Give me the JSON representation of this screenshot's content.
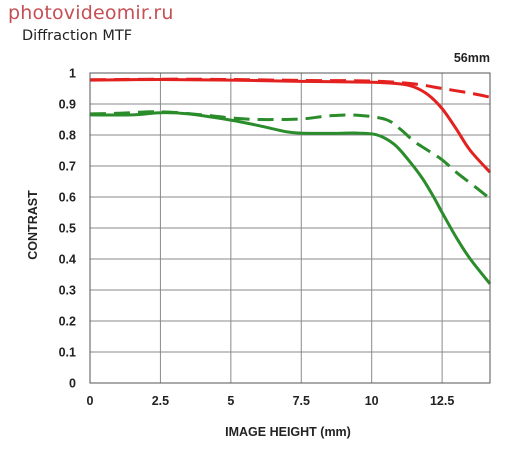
{
  "watermark": "photovideomir.ru",
  "subtitle": "Diffraction MTF",
  "focal_length": "56mm",
  "colors": {
    "red": "#e3211f",
    "green": "#2a8c2a",
    "grid": "#8a8a8a",
    "watermark": "#c64f55"
  },
  "chart_data": {
    "type": "line",
    "title": "",
    "xlabel": "IMAGE HEIGHT (mm)",
    "ylabel": "CONTRAST",
    "xlim": [
      0,
      14.2
    ],
    "ylim": [
      0,
      1
    ],
    "x_ticks": [
      "0",
      "2.5",
      "5",
      "7.5",
      "10",
      "12.5"
    ],
    "x_tick_values": [
      0,
      2.5,
      5,
      7.5,
      10,
      12.5
    ],
    "y_ticks": [
      "0",
      "0.1",
      "0.2",
      "0.3",
      "0.4",
      "0.5",
      "0.6",
      "0.7",
      "0.8",
      "0.9",
      "1"
    ],
    "y_tick_values": [
      0,
      0.1,
      0.2,
      0.3,
      0.4,
      0.5,
      0.6,
      0.7,
      0.8,
      0.9,
      1
    ],
    "grid": true,
    "legend": "none",
    "series": [
      {
        "color": "red",
        "style": "dashed",
        "points": [
          [
            0,
            0.978
          ],
          [
            2.5,
            0.98
          ],
          [
            5,
            0.979
          ],
          [
            7.5,
            0.976
          ],
          [
            10,
            0.974
          ],
          [
            11.5,
            0.965
          ],
          [
            12.5,
            0.95
          ],
          [
            13.5,
            0.935
          ],
          [
            14.2,
            0.922
          ]
        ]
      },
      {
        "color": "red",
        "style": "solid",
        "points": [
          [
            0,
            0.977
          ],
          [
            2.5,
            0.979
          ],
          [
            5,
            0.977
          ],
          [
            7.5,
            0.973
          ],
          [
            10,
            0.97
          ],
          [
            11,
            0.965
          ],
          [
            11.5,
            0.955
          ],
          [
            12,
            0.93
          ],
          [
            12.5,
            0.885
          ],
          [
            13,
            0.82
          ],
          [
            13.5,
            0.75
          ],
          [
            14.2,
            0.68
          ]
        ]
      },
      {
        "color": "green",
        "style": "dashed",
        "points": [
          [
            0,
            0.868
          ],
          [
            1,
            0.87
          ],
          [
            2.5,
            0.875
          ],
          [
            4,
            0.865
          ],
          [
            5,
            0.855
          ],
          [
            6,
            0.85
          ],
          [
            7.5,
            0.852
          ],
          [
            8.5,
            0.862
          ],
          [
            9.5,
            0.864
          ],
          [
            10.5,
            0.85
          ],
          [
            11,
            0.82
          ],
          [
            11.5,
            0.78
          ],
          [
            12,
            0.75
          ],
          [
            12.5,
            0.72
          ],
          [
            13,
            0.68
          ],
          [
            13.5,
            0.645
          ],
          [
            14.2,
            0.595
          ]
        ]
      },
      {
        "color": "green",
        "style": "solid",
        "points": [
          [
            0,
            0.865
          ],
          [
            1.5,
            0.865
          ],
          [
            2.5,
            0.872
          ],
          [
            3.5,
            0.868
          ],
          [
            5,
            0.848
          ],
          [
            6,
            0.83
          ],
          [
            7,
            0.81
          ],
          [
            7.5,
            0.806
          ],
          [
            8.5,
            0.805
          ],
          [
            9.5,
            0.806
          ],
          [
            10.2,
            0.8
          ],
          [
            10.8,
            0.77
          ],
          [
            11.3,
            0.72
          ],
          [
            11.8,
            0.66
          ],
          [
            12.2,
            0.6
          ],
          [
            12.5,
            0.55
          ],
          [
            13,
            0.47
          ],
          [
            13.5,
            0.4
          ],
          [
            14.2,
            0.32
          ]
        ]
      }
    ]
  }
}
